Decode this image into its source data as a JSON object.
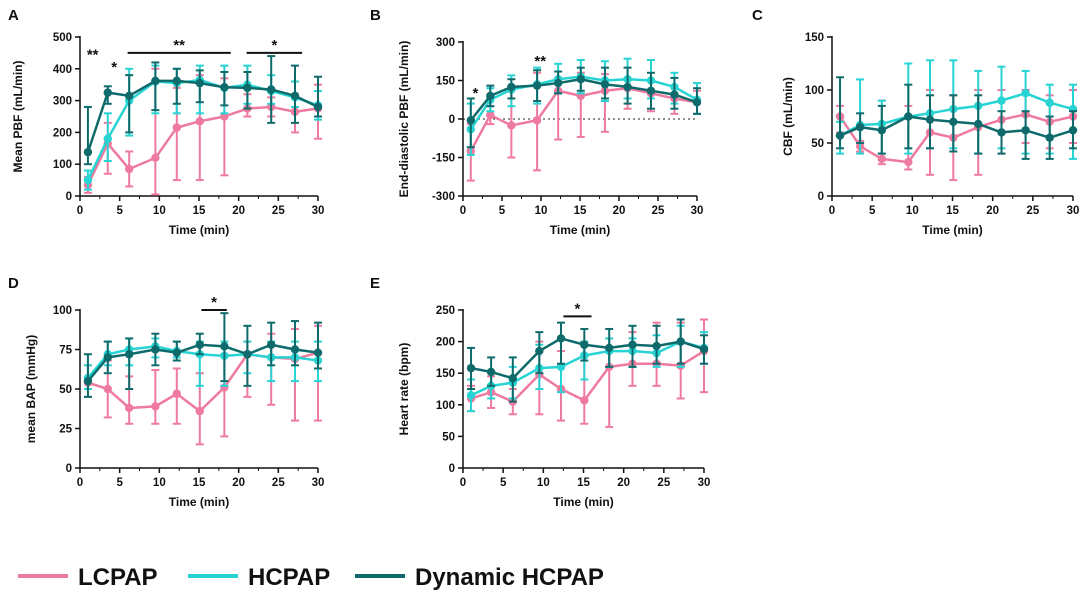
{
  "colors": {
    "LCPAP": "#ef7aa0",
    "HCPAP": "#27d3d3",
    "Dynamic HCPAP": "#0f6b6b",
    "axis": "#111111"
  },
  "legend": [
    {
      "label": "LCPAP",
      "color": "#ef7aa0"
    },
    {
      "label": "HCPAP",
      "color": "#27d3d3"
    },
    {
      "label": "Dynamic HCPAP",
      "color": "#0f6b6b"
    }
  ],
  "chart_data": [
    {
      "id": "A",
      "letter": "A",
      "type": "line",
      "xlabel": "Time (min)",
      "ylabel": "Mean PBF (mL/min)",
      "xlim": [
        0,
        30
      ],
      "xticks": [
        0,
        5,
        10,
        15,
        20,
        25,
        30
      ],
      "ylim": [
        0,
        500
      ],
      "yticks": [
        0,
        100,
        200,
        300,
        400,
        500
      ],
      "significance": [
        {
          "label": "**",
          "x1": 1.6,
          "x2": 1.6,
          "y": 420,
          "bar": false
        },
        {
          "label": "*",
          "x1": 4.3,
          "x2": 4.3,
          "y": 380,
          "bar": false
        },
        {
          "label": "**",
          "x1": 6,
          "x2": 19,
          "y": 450,
          "bar": true
        },
        {
          "label": "*",
          "x1": 21,
          "x2": 28,
          "y": 450,
          "bar": true
        }
      ],
      "series": [
        {
          "name": "LCPAP",
          "x": [
            1,
            3.5,
            6.2,
            9.5,
            12.2,
            15.1,
            18.2,
            21.1,
            24.1,
            27.1,
            30
          ],
          "y": [
            35,
            165,
            85,
            120,
            215,
            235,
            250,
            275,
            280,
            265,
            275
          ],
          "err_low": [
            10,
            70,
            30,
            5,
            50,
            50,
            65,
            250,
            250,
            200,
            180
          ],
          "err_high": [
            60,
            230,
            140,
            400,
            340,
            380,
            370,
            320,
            310,
            320,
            350
          ]
        },
        {
          "name": "HCPAP",
          "x": [
            1,
            3.5,
            6.2,
            9.5,
            12.2,
            15.1,
            18.2,
            21.1,
            24.1,
            27.1,
            30
          ],
          "y": [
            50,
            180,
            300,
            360,
            355,
            365,
            340,
            350,
            330,
            310,
            285
          ],
          "err_low": [
            20,
            110,
            190,
            260,
            260,
            260,
            260,
            290,
            290,
            280,
            240
          ],
          "err_high": [
            80,
            260,
            400,
            410,
            400,
            410,
            410,
            410,
            380,
            360,
            330
          ]
        },
        {
          "name": "Dynamic HCPAP",
          "x": [
            1,
            3.5,
            6.2,
            9.5,
            12.2,
            15.1,
            18.2,
            21.1,
            24.1,
            27.1,
            30
          ],
          "y": [
            138,
            325,
            315,
            362,
            362,
            355,
            342,
            340,
            335,
            315,
            280
          ],
          "err_low": [
            100,
            290,
            200,
            270,
            290,
            295,
            285,
            275,
            230,
            230,
            250
          ],
          "err_high": [
            280,
            345,
            380,
            420,
            400,
            395,
            390,
            390,
            440,
            410,
            375
          ]
        }
      ]
    },
    {
      "id": "B",
      "letter": "B",
      "type": "line",
      "xlabel": "Time (min)",
      "ylabel": "End-diastolic PBF (mL/min)",
      "xlim": [
        0,
        30
      ],
      "xticks": [
        0,
        5,
        10,
        15,
        20,
        25,
        30
      ],
      "ylim": [
        -300,
        300
      ],
      "yticks": [
        -300,
        -150,
        0,
        150,
        300
      ],
      "reference_line": 0,
      "significance": [
        {
          "label": "*",
          "x1": 1.6,
          "x2": 1.6,
          "y": 70,
          "bar": false
        },
        {
          "label": "**",
          "x1": 9.9,
          "x2": 9.9,
          "y": 195,
          "bar": false
        }
      ],
      "series": [
        {
          "name": "LCPAP",
          "x": [
            1,
            3.5,
            6.2,
            9.5,
            12.2,
            15.1,
            18.2,
            21.1,
            24.1,
            27.1,
            30
          ],
          "y": [
            -125,
            15,
            -25,
            -5,
            110,
            90,
            110,
            120,
            100,
            80,
            65
          ],
          "err_low": [
            -240,
            -20,
            -150,
            -200,
            -80,
            -70,
            -50,
            40,
            30,
            20,
            20
          ],
          "err_high": [
            -20,
            50,
            120,
            180,
            160,
            180,
            175,
            160,
            150,
            130,
            110
          ]
        },
        {
          "name": "HCPAP",
          "x": [
            1,
            3.5,
            6.2,
            9.5,
            12.2,
            15.1,
            18.2,
            21.1,
            24.1,
            27.1,
            30
          ],
          "y": [
            -40,
            75,
            115,
            135,
            155,
            165,
            150,
            155,
            150,
            125,
            75
          ],
          "err_low": [
            -140,
            30,
            50,
            60,
            100,
            100,
            70,
            80,
            80,
            60,
            20
          ],
          "err_high": [
            60,
            120,
            170,
            200,
            215,
            230,
            225,
            235,
            230,
            180,
            140
          ]
        },
        {
          "name": "Dynamic HCPAP",
          "x": [
            1,
            3.5,
            6.2,
            9.5,
            12.2,
            15.1,
            18.2,
            21.1,
            24.1,
            27.1,
            30
          ],
          "y": [
            -5,
            90,
            125,
            130,
            140,
            155,
            135,
            125,
            110,
            95,
            65
          ],
          "err_low": [
            -110,
            50,
            80,
            70,
            100,
            110,
            80,
            60,
            40,
            40,
            20
          ],
          "err_high": [
            80,
            130,
            155,
            190,
            185,
            200,
            200,
            200,
            180,
            160,
            120
          ]
        }
      ]
    },
    {
      "id": "C",
      "letter": "C",
      "type": "line",
      "xlabel": "Time (min)",
      "ylabel": "CBF (mL/min)",
      "xlim": [
        0,
        30
      ],
      "xticks": [
        0,
        5,
        10,
        15,
        20,
        25,
        30
      ],
      "ylim": [
        0,
        150
      ],
      "yticks": [
        0,
        50,
        100,
        150
      ],
      "significance": [],
      "series": [
        {
          "name": "LCPAP",
          "x": [
            1,
            3.5,
            6.2,
            9.5,
            12.2,
            15.1,
            18.2,
            21.1,
            24.1,
            27.1,
            30
          ],
          "y": [
            75,
            47,
            35,
            32,
            60,
            55,
            65,
            72,
            77,
            70,
            75
          ],
          "err_low": [
            60,
            42,
            30,
            25,
            20,
            15,
            20,
            40,
            50,
            45,
            50
          ],
          "err_high": [
            85,
            52,
            90,
            85,
            100,
            95,
            100,
            100,
            100,
            95,
            100
          ]
        },
        {
          "name": "HCPAP",
          "x": [
            1,
            3.5,
            6.2,
            9.5,
            12.2,
            15.1,
            18.2,
            21.1,
            24.1,
            27.1,
            30
          ],
          "y": [
            57,
            67,
            68,
            75,
            78,
            82,
            85,
            90,
            97,
            88,
            82
          ],
          "err_low": [
            40,
            40,
            40,
            40,
            45,
            45,
            40,
            45,
            40,
            40,
            35
          ],
          "err_high": [
            70,
            110,
            90,
            125,
            128,
            128,
            118,
            122,
            118,
            105,
            105
          ]
        },
        {
          "name": "Dynamic HCPAP",
          "x": [
            1,
            3.5,
            6.2,
            9.5,
            12.2,
            15.1,
            18.2,
            21.1,
            24.1,
            27.1,
            30
          ],
          "y": [
            57,
            65,
            62,
            75,
            72,
            70,
            68,
            60,
            62,
            55,
            62
          ],
          "err_low": [
            45,
            50,
            40,
            45,
            45,
            42,
            40,
            40,
            35,
            35,
            45
          ],
          "err_high": [
            112,
            78,
            85,
            105,
            95,
            95,
            95,
            80,
            80,
            75,
            80
          ]
        }
      ]
    },
    {
      "id": "D",
      "letter": "D",
      "type": "line",
      "xlabel": "Time (min)",
      "ylabel": "mean BAP (mmHg)",
      "xlim": [
        0,
        30
      ],
      "xticks": [
        0,
        5,
        10,
        15,
        20,
        25,
        30
      ],
      "ylim": [
        0,
        100
      ],
      "yticks": [
        0,
        25,
        50,
        75,
        100
      ],
      "significance": [
        {
          "label": "*",
          "x1": 15.3,
          "x2": 18.5,
          "y": 100,
          "bar": true
        }
      ],
      "series": [
        {
          "name": "LCPAP",
          "x": [
            1,
            3.5,
            6.2,
            9.5,
            12.2,
            15.1,
            18.2,
            21.1,
            24.1,
            27.1,
            30
          ],
          "y": [
            54,
            50,
            38,
            39,
            47,
            36,
            51,
            72,
            70,
            69,
            73
          ],
          "err_low": [
            45,
            32,
            28,
            28,
            28,
            15,
            20,
            45,
            40,
            30,
            30
          ],
          "err_high": [
            65,
            68,
            58,
            62,
            63,
            60,
            72,
            80,
            85,
            88,
            90
          ]
        },
        {
          "name": "HCPAP",
          "x": [
            1,
            3.5,
            6.2,
            9.5,
            12.2,
            15.1,
            18.2,
            21.1,
            24.1,
            27.1,
            30
          ],
          "y": [
            57,
            72,
            75,
            77,
            74,
            72,
            71,
            72,
            70,
            70,
            68
          ],
          "err_low": [
            50,
            65,
            65,
            70,
            70,
            52,
            52,
            60,
            55,
            55,
            55
          ],
          "err_high": [
            65,
            80,
            82,
            82,
            80,
            80,
            80,
            80,
            80,
            80,
            80
          ]
        },
        {
          "name": "Dynamic HCPAP",
          "x": [
            1,
            3.5,
            6.2,
            9.5,
            12.2,
            15.1,
            18.2,
            21.1,
            24.1,
            27.1,
            30
          ],
          "y": [
            55,
            70,
            72,
            75,
            73,
            78,
            77,
            72,
            78,
            75,
            73
          ],
          "err_low": [
            45,
            60,
            50,
            65,
            68,
            72,
            55,
            52,
            65,
            65,
            63
          ],
          "err_high": [
            72,
            80,
            82,
            85,
            80,
            85,
            98,
            90,
            92,
            93,
            92
          ]
        }
      ]
    },
    {
      "id": "E",
      "letter": "E",
      "type": "line",
      "xlabel": "Time (min)",
      "ylabel": "Heart rate (bpm)",
      "xlim": [
        0,
        30
      ],
      "xticks": [
        0,
        5,
        10,
        15,
        20,
        25,
        30
      ],
      "ylim": [
        0,
        250
      ],
      "yticks": [
        0,
        50,
        100,
        150,
        200,
        250
      ],
      "significance": [
        {
          "label": "*",
          "x1": 12.5,
          "x2": 16,
          "y": 240,
          "bar": true
        }
      ],
      "series": [
        {
          "name": "LCPAP",
          "x": [
            1,
            3.5,
            6.2,
            9.5,
            12.2,
            15.1,
            18.2,
            21.1,
            24.1,
            27.1,
            30
          ],
          "y": [
            110,
            120,
            105,
            148,
            125,
            107,
            160,
            165,
            165,
            162,
            185
          ],
          "err_low": [
            90,
            95,
            85,
            85,
            75,
            70,
            65,
            130,
            130,
            110,
            120
          ],
          "err_high": [
            130,
            145,
            125,
            200,
            185,
            200,
            205,
            215,
            230,
            230,
            235
          ]
        },
        {
          "name": "HCPAP",
          "x": [
            1,
            3.5,
            6.2,
            9.5,
            12.2,
            15.1,
            18.2,
            21.1,
            24.1,
            27.1,
            30
          ],
          "y": [
            115,
            130,
            135,
            158,
            160,
            178,
            185,
            185,
            182,
            200,
            190
          ],
          "err_low": [
            90,
            110,
            110,
            125,
            120,
            140,
            160,
            160,
            160,
            160,
            165
          ],
          "err_high": [
            140,
            150,
            160,
            195,
            205,
            200,
            205,
            205,
            210,
            225,
            215
          ]
        },
        {
          "name": "Dynamic HCPAP",
          "x": [
            1,
            3.5,
            6.2,
            9.5,
            12.2,
            15.1,
            18.2,
            21.1,
            24.1,
            27.1,
            30
          ],
          "y": [
            158,
            152,
            142,
            185,
            205,
            195,
            190,
            195,
            193,
            200,
            188
          ],
          "err_low": [
            125,
            130,
            105,
            150,
            165,
            170,
            160,
            160,
            165,
            165,
            165
          ],
          "err_high": [
            190,
            175,
            175,
            215,
            230,
            220,
            220,
            225,
            225,
            235,
            210
          ]
        }
      ]
    }
  ]
}
